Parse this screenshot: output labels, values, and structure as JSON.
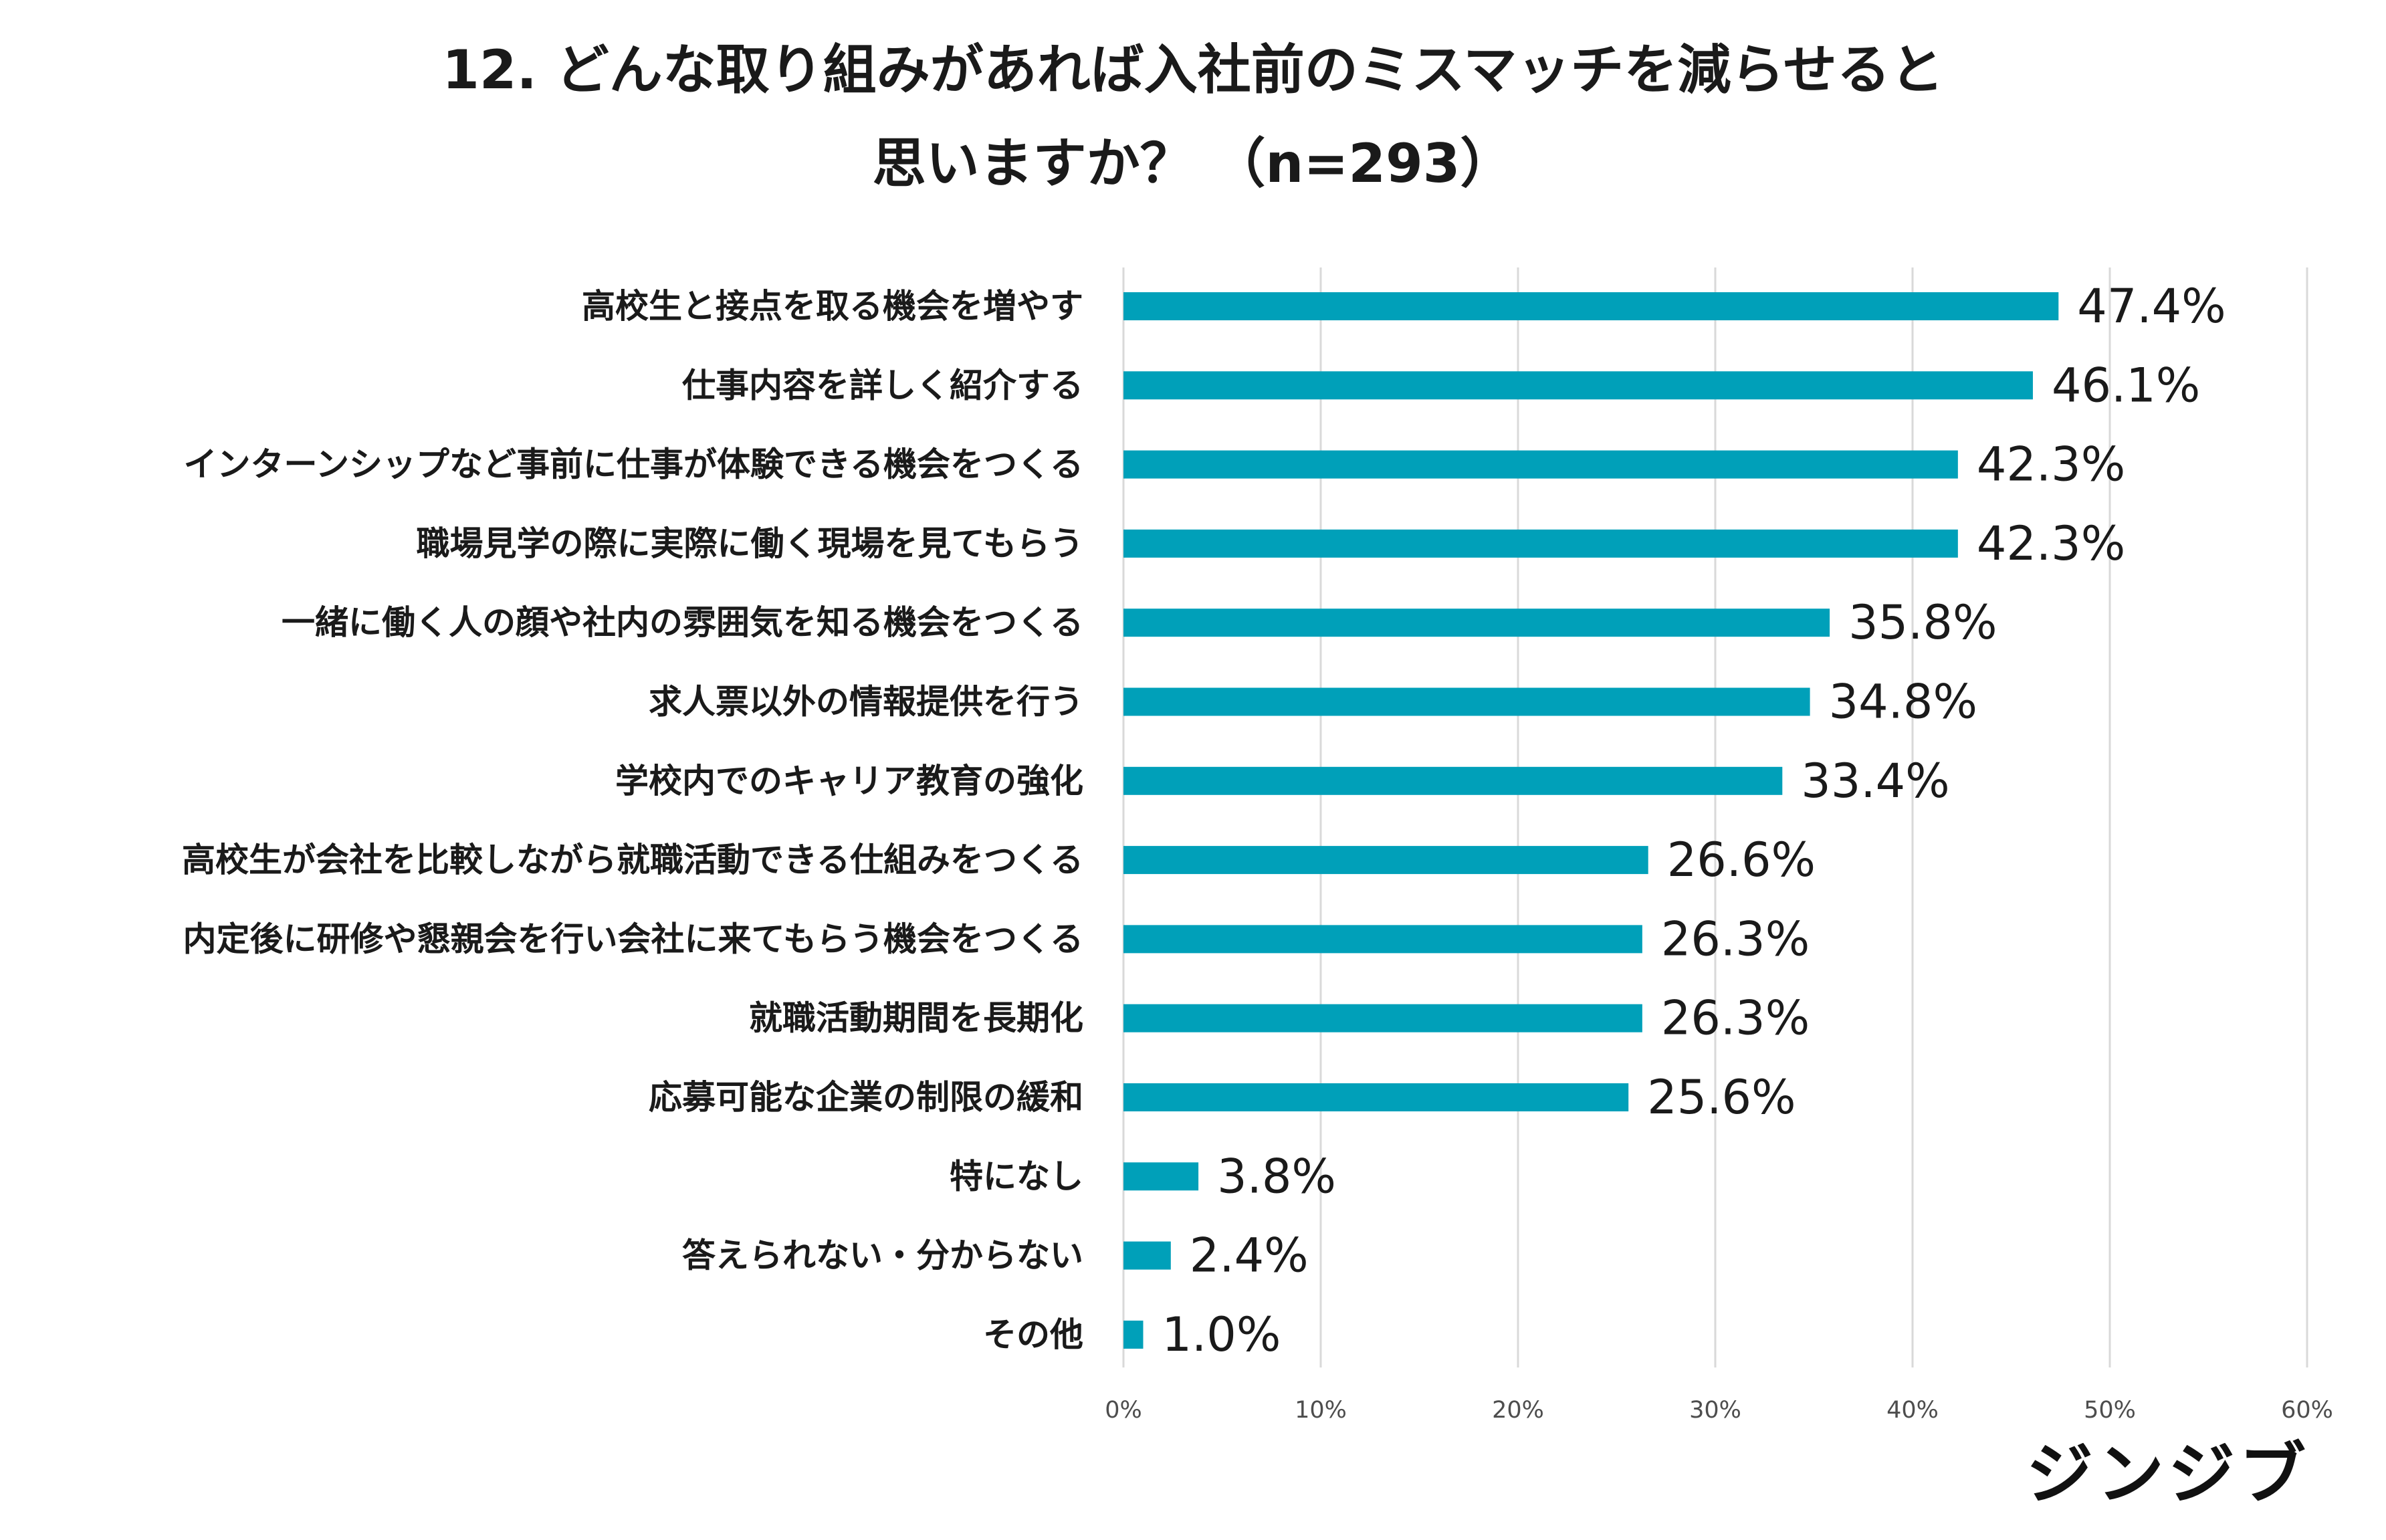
{
  "chart_data": {
    "type": "bar",
    "orientation": "horizontal",
    "title": "12. どんな取り組みがあれば入社前のミスマッチを減らせると",
    "subtitle": "思いますか？ （n=293）",
    "categories": [
      "高校生と接点を取る機会を増やす",
      "仕事内容を詳しく紹介する",
      "インターンシップなど事前に仕事が体験できる機会をつくる",
      "職場見学の際に実際に働く現場を見てもらう",
      "一緒に働く人の顔や社内の雰囲気を知る機会をつくる",
      "求人票以外の情報提供を行う",
      "学校内でのキャリア教育の強化",
      "高校生が会社を比較しながら就職活動できる仕組みをつくる",
      "内定後に研修や懇親会を行い会社に来てもらう機会をつくる",
      "就職活動期間を長期化",
      "応募可能な企業の制限の緩和",
      "特になし",
      "答えられない・分からない",
      "その他"
    ],
    "values": [
      47.4,
      46.1,
      42.3,
      42.3,
      35.8,
      34.8,
      33.4,
      26.6,
      26.3,
      26.3,
      25.6,
      3.8,
      2.4,
      1.0
    ],
    "value_labels": [
      "47.4%",
      "46.1%",
      "42.3%",
      "42.3%",
      "35.8%",
      "34.8%",
      "33.4%",
      "26.6%",
      "26.3%",
      "26.3%",
      "25.6%",
      "3.8%",
      "2.4%",
      "1.0%"
    ],
    "xlim": [
      0,
      60
    ],
    "x_ticks": [
      0,
      10,
      20,
      30,
      40,
      50,
      60
    ],
    "x_tick_labels": [
      "0%",
      "10%",
      "20%",
      "30%",
      "40%",
      "50%",
      "60%"
    ],
    "grid": true,
    "legend": "none",
    "bar_color": "#00a0b9"
  },
  "brand": {
    "text": "ジンジブ"
  }
}
